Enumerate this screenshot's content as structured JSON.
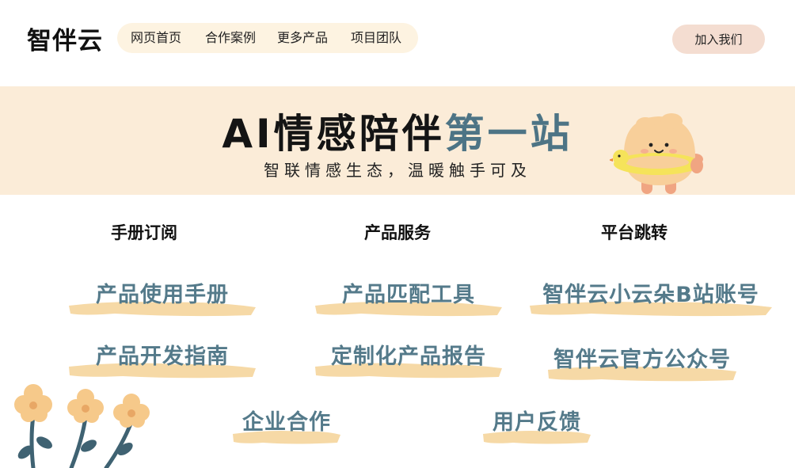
{
  "header": {
    "logo": "智伴云",
    "nav": [
      "网页首页",
      "合作案例",
      "更多产品",
      "项目团队"
    ],
    "join_label": "加入我们"
  },
  "hero": {
    "title_dark": "AI情感陪伴",
    "title_teal": "第一站",
    "subtitle": "智联情感生态，温暖触手可及"
  },
  "sections": {
    "manual": {
      "heading": "手册订阅",
      "links": [
        "产品使用手册",
        "产品开发指南"
      ]
    },
    "services": {
      "heading": "产品服务",
      "links": [
        "产品匹配工具",
        "定制化产品报告"
      ]
    },
    "platform": {
      "heading": "平台跳转",
      "links": [
        "智伴云小云朵B站账号",
        "智伴云官方公众号"
      ]
    }
  },
  "bottom_links": [
    "企业合作",
    "用户反馈"
  ],
  "colors": {
    "nav_bg": "#fdf3e1",
    "join_bg": "#f4ddd1",
    "hero_bg": "#fbecd8",
    "accent_teal": "#547a8a",
    "brush_stroke": "#f6d9a6",
    "flower_petal": "#f6c98a",
    "flower_stem": "#3f6272"
  },
  "icons": [
    "mascot-illustration",
    "flower-decoration"
  ]
}
